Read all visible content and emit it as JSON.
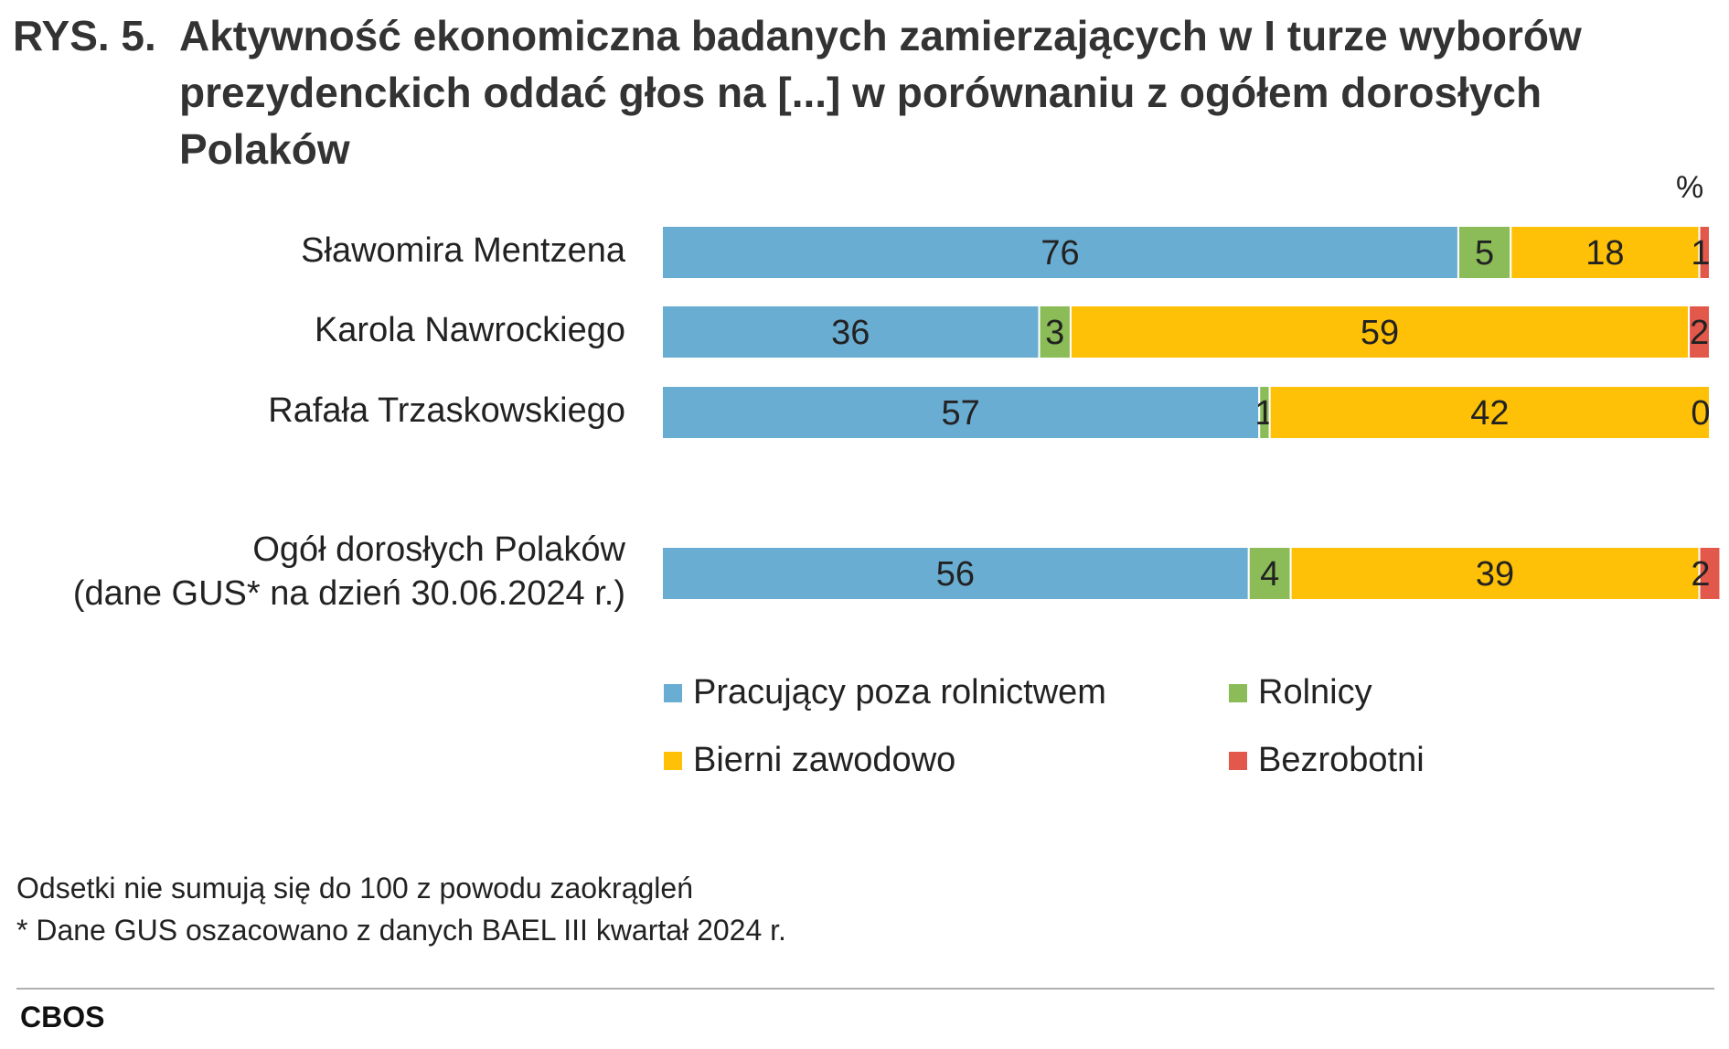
{
  "figure_number": "RYS. 5.",
  "unit_label": "%",
  "chart_data": {
    "type": "bar",
    "orientation": "horizontal",
    "stacked": true,
    "title": "Aktywność ekonomiczna badanych zamierzających w I turze wyborów prezydenckich oddać głos na [...] w porównaniu z ogółem dorosłych Polaków",
    "categories": [
      [
        "Sławomira Mentzena"
      ],
      [
        "Karola Nawrockiego"
      ],
      [
        "Rafała Trzaskowskiego"
      ],
      [
        "Ogół dorosłych Polaków",
        "(dane GUS* na dzień 30.06.2024 r.)"
      ]
    ],
    "series": [
      {
        "name": "Pracujący poza rolnictwem",
        "color": "#6aadd2",
        "values": [
          76,
          36,
          57,
          56
        ]
      },
      {
        "name": "Rolnicy",
        "color": "#8bbc58",
        "values": [
          5,
          3,
          1,
          4
        ]
      },
      {
        "name": "Bierni zawodowo",
        "color": "#fec107",
        "values": [
          18,
          59,
          42,
          39
        ]
      },
      {
        "name": "Bezrobotni",
        "color": "#e2584a",
        "values": [
          1,
          2,
          0,
          2
        ]
      }
    ],
    "xlim": [
      0,
      100
    ],
    "grid": false,
    "legend_position": "bottom"
  },
  "notes": [
    "Odsetki nie sumują się do 100 z powodu zaokrągleń",
    "* Dane GUS oszacowano z danych BAEL III kwartał 2024 r."
  ],
  "source": "CBOS"
}
